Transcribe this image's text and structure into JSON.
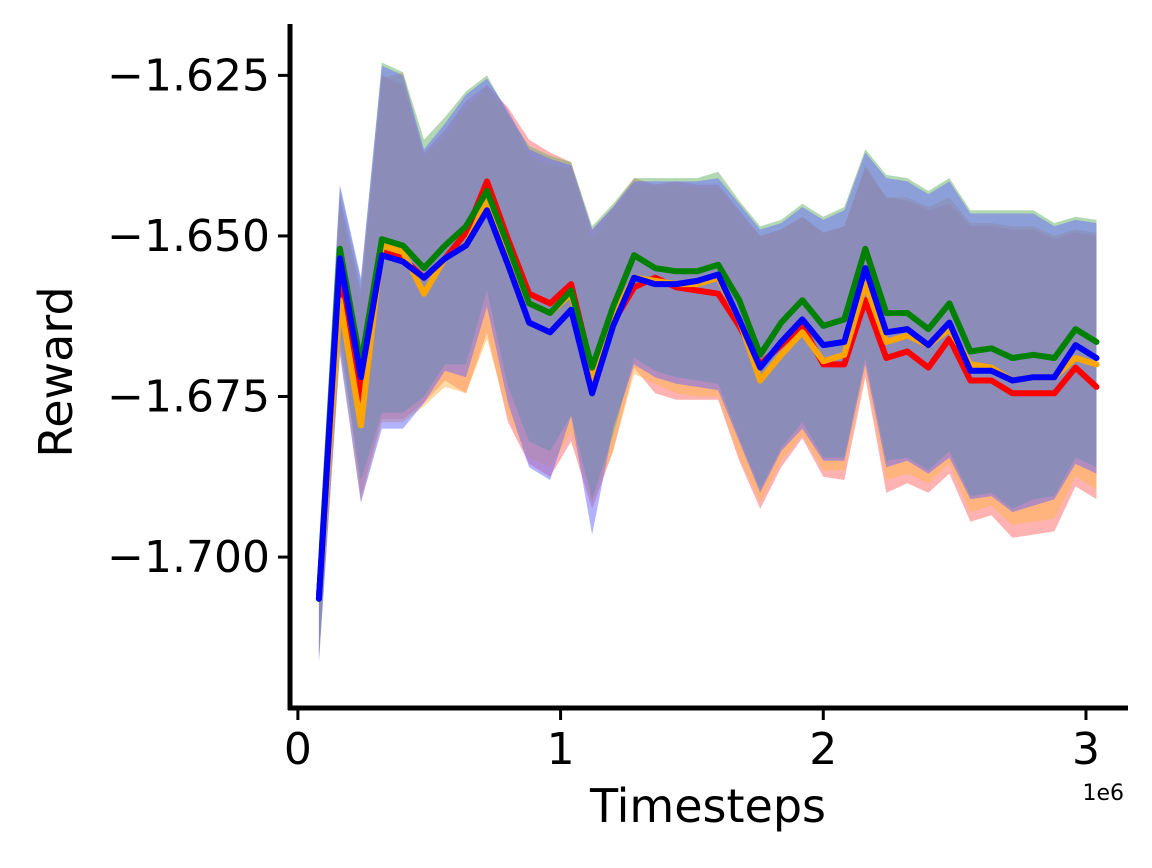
{
  "chart_data": {
    "type": "line",
    "title": "",
    "xlabel": "Timesteps",
    "ylabel": "Reward",
    "x_offset_label": "1e6",
    "xlim": [
      -0.03,
      3.16
    ],
    "ylim": [
      -1.7235,
      -1.617
    ],
    "x_ticks": [
      {
        "value": 0,
        "label": "0"
      },
      {
        "value": 1,
        "label": "1"
      },
      {
        "value": 2,
        "label": "2"
      },
      {
        "value": 3,
        "label": "3"
      }
    ],
    "y_ticks": [
      {
        "value": -1.625,
        "label": "−1.625"
      },
      {
        "value": -1.65,
        "label": "−1.650"
      },
      {
        "value": -1.675,
        "label": "−1.675"
      },
      {
        "value": -1.7,
        "label": "−1.700"
      }
    ],
    "grid": false,
    "x": [
      0.08,
      0.16,
      0.24,
      0.32,
      0.4,
      0.48,
      0.56,
      0.64,
      0.72,
      0.8,
      0.88,
      0.96,
      1.04,
      1.12,
      1.2,
      1.28,
      1.36,
      1.44,
      1.52,
      1.6,
      1.68,
      1.76,
      1.84,
      1.92,
      2.0,
      2.08,
      2.16,
      2.24,
      2.32,
      2.4,
      2.48,
      2.56,
      2.64,
      2.72,
      2.8,
      2.88,
      2.96,
      3.04
    ],
    "series": [
      {
        "color": "#ff0000",
        "band_color": "#ff6666",
        "values": [
          -1.7065,
          -1.656,
          -1.6755,
          -1.6525,
          -1.6535,
          -1.6565,
          -1.6535,
          -1.6495,
          -1.6415,
          -1.6505,
          -1.659,
          -1.6605,
          -1.6575,
          -1.671,
          -1.6635,
          -1.658,
          -1.6565,
          -1.658,
          -1.6585,
          -1.659,
          -1.664,
          -1.67,
          -1.667,
          -1.664,
          -1.67,
          -1.67,
          -1.66,
          -1.669,
          -1.668,
          -1.6705,
          -1.666,
          -1.6725,
          -1.6725,
          -1.6745,
          -1.6745,
          -1.6745,
          -1.6705,
          -1.6735
        ],
        "lower": [
          -1.7155,
          -1.664,
          -1.6905,
          -1.6785,
          -1.6785,
          -1.676,
          -1.6725,
          -1.6745,
          -1.665,
          -1.679,
          -1.6855,
          -1.6875,
          -1.682,
          -1.6925,
          -1.6835,
          -1.6705,
          -1.6745,
          -1.6755,
          -1.6755,
          -1.6755,
          -1.685,
          -1.6925,
          -1.686,
          -1.6815,
          -1.6875,
          -1.688,
          -1.672,
          -1.69,
          -1.6885,
          -1.69,
          -1.687,
          -1.6945,
          -1.6935,
          -1.697,
          -1.6965,
          -1.696,
          -1.689,
          -1.691
        ],
        "upper": [
          -1.6985,
          -1.644,
          -1.6585,
          -1.625,
          -1.6265,
          -1.637,
          -1.6335,
          -1.629,
          -1.6265,
          -1.63,
          -1.635,
          -1.637,
          -1.6385,
          -1.649,
          -1.6455,
          -1.641,
          -1.642,
          -1.6415,
          -1.642,
          -1.642,
          -1.646,
          -1.65,
          -1.649,
          -1.647,
          -1.6495,
          -1.6485,
          -1.6395,
          -1.644,
          -1.6445,
          -1.646,
          -1.645,
          -1.6485,
          -1.6485,
          -1.649,
          -1.649,
          -1.6505,
          -1.6495,
          -1.65
        ]
      },
      {
        "color": "#ffa500",
        "band_color": "#ffb347",
        "values": [
          -1.7065,
          -1.66,
          -1.6795,
          -1.6515,
          -1.6525,
          -1.659,
          -1.6535,
          -1.6515,
          -1.6445,
          -1.6525,
          -1.6605,
          -1.662,
          -1.659,
          -1.6725,
          -1.6625,
          -1.6565,
          -1.657,
          -1.6575,
          -1.6575,
          -1.6565,
          -1.663,
          -1.6725,
          -1.6685,
          -1.665,
          -1.6695,
          -1.6685,
          -1.6575,
          -1.6665,
          -1.6655,
          -1.667,
          -1.6645,
          -1.67,
          -1.6705,
          -1.6725,
          -1.672,
          -1.672,
          -1.669,
          -1.67
        ],
        "lower": [
          -1.715,
          -1.668,
          -1.6915,
          -1.679,
          -1.679,
          -1.6765,
          -1.6735,
          -1.6745,
          -1.666,
          -1.678,
          -1.6845,
          -1.686,
          -1.6805,
          -1.6915,
          -1.6835,
          -1.6715,
          -1.673,
          -1.6745,
          -1.675,
          -1.675,
          -1.6845,
          -1.6915,
          -1.685,
          -1.681,
          -1.6865,
          -1.6865,
          -1.671,
          -1.688,
          -1.687,
          -1.6885,
          -1.6855,
          -1.693,
          -1.692,
          -1.695,
          -1.6945,
          -1.694,
          -1.6875,
          -1.6895
        ],
        "upper": [
          -1.6985,
          -1.646,
          -1.66,
          -1.6255,
          -1.6245,
          -1.6375,
          -1.6345,
          -1.63,
          -1.627,
          -1.631,
          -1.6375,
          -1.639,
          -1.6395,
          -1.6505,
          -1.646,
          -1.642,
          -1.642,
          -1.642,
          -1.6425,
          -1.6425,
          -1.6465,
          -1.65,
          -1.649,
          -1.647,
          -1.6495,
          -1.6485,
          -1.639,
          -1.644,
          -1.644,
          -1.6455,
          -1.644,
          -1.648,
          -1.648,
          -1.6485,
          -1.6485,
          -1.65,
          -1.649,
          -1.6495
        ]
      },
      {
        "color": "#008000",
        "band_color": "#66b266",
        "values": [
          -1.7065,
          -1.652,
          -1.67,
          -1.6505,
          -1.6515,
          -1.655,
          -1.6515,
          -1.6485,
          -1.643,
          -1.6515,
          -1.6605,
          -1.662,
          -1.6585,
          -1.6705,
          -1.661,
          -1.653,
          -1.655,
          -1.6555,
          -1.6555,
          -1.6545,
          -1.66,
          -1.6685,
          -1.6635,
          -1.66,
          -1.664,
          -1.663,
          -1.652,
          -1.662,
          -1.662,
          -1.6645,
          -1.6605,
          -1.668,
          -1.6675,
          -1.669,
          -1.6685,
          -1.669,
          -1.6645,
          -1.6665
        ],
        "lower": [
          -1.716,
          -1.667,
          -1.688,
          -1.6775,
          -1.6775,
          -1.675,
          -1.67,
          -1.67,
          -1.6585,
          -1.6735,
          -1.682,
          -1.6835,
          -1.678,
          -1.691,
          -1.681,
          -1.669,
          -1.671,
          -1.672,
          -1.6725,
          -1.673,
          -1.6815,
          -1.6895,
          -1.683,
          -1.679,
          -1.6845,
          -1.6845,
          -1.669,
          -1.685,
          -1.6845,
          -1.6865,
          -1.6835,
          -1.6905,
          -1.69,
          -1.6925,
          -1.691,
          -1.6905,
          -1.6845,
          -1.686
        ],
        "upper": [
          -1.698,
          -1.6425,
          -1.657,
          -1.623,
          -1.6245,
          -1.635,
          -1.6315,
          -1.6275,
          -1.625,
          -1.631,
          -1.636,
          -1.6375,
          -1.6385,
          -1.6485,
          -1.645,
          -1.641,
          -1.641,
          -1.641,
          -1.641,
          -1.64,
          -1.6445,
          -1.6485,
          -1.6475,
          -1.645,
          -1.647,
          -1.6455,
          -1.6365,
          -1.6405,
          -1.641,
          -1.643,
          -1.641,
          -1.646,
          -1.646,
          -1.646,
          -1.646,
          -1.648,
          -1.647,
          -1.6475
        ]
      },
      {
        "color": "#0000ff",
        "band_color": "#6666ff",
        "values": [
          -1.7065,
          -1.6535,
          -1.672,
          -1.653,
          -1.654,
          -1.6565,
          -1.6535,
          -1.6515,
          -1.646,
          -1.6545,
          -1.6635,
          -1.665,
          -1.6615,
          -1.6745,
          -1.664,
          -1.6565,
          -1.6575,
          -1.6575,
          -1.657,
          -1.656,
          -1.663,
          -1.6705,
          -1.6665,
          -1.663,
          -1.667,
          -1.6665,
          -1.655,
          -1.665,
          -1.6645,
          -1.667,
          -1.6635,
          -1.671,
          -1.671,
          -1.6725,
          -1.672,
          -1.672,
          -1.667,
          -1.669
        ],
        "lower": [
          -1.7165,
          -1.6685,
          -1.6915,
          -1.68,
          -1.68,
          -1.676,
          -1.671,
          -1.672,
          -1.661,
          -1.676,
          -1.686,
          -1.688,
          -1.678,
          -1.6965,
          -1.68,
          -1.67,
          -1.672,
          -1.673,
          -1.6735,
          -1.674,
          -1.682,
          -1.69,
          -1.6835,
          -1.68,
          -1.685,
          -1.685,
          -1.67,
          -1.686,
          -1.685,
          -1.687,
          -1.6845,
          -1.691,
          -1.6905,
          -1.693,
          -1.692,
          -1.691,
          -1.6855,
          -1.687
        ],
        "upper": [
          -1.699,
          -1.642,
          -1.6565,
          -1.6235,
          -1.625,
          -1.6365,
          -1.6325,
          -1.628,
          -1.6255,
          -1.6305,
          -1.6365,
          -1.638,
          -1.639,
          -1.649,
          -1.6455,
          -1.6415,
          -1.6415,
          -1.6415,
          -1.6415,
          -1.641,
          -1.645,
          -1.649,
          -1.648,
          -1.6455,
          -1.6475,
          -1.646,
          -1.637,
          -1.641,
          -1.6415,
          -1.6435,
          -1.6415,
          -1.6465,
          -1.6465,
          -1.6465,
          -1.6465,
          -1.6485,
          -1.6475,
          -1.648
        ]
      }
    ],
    "legend": "none"
  }
}
